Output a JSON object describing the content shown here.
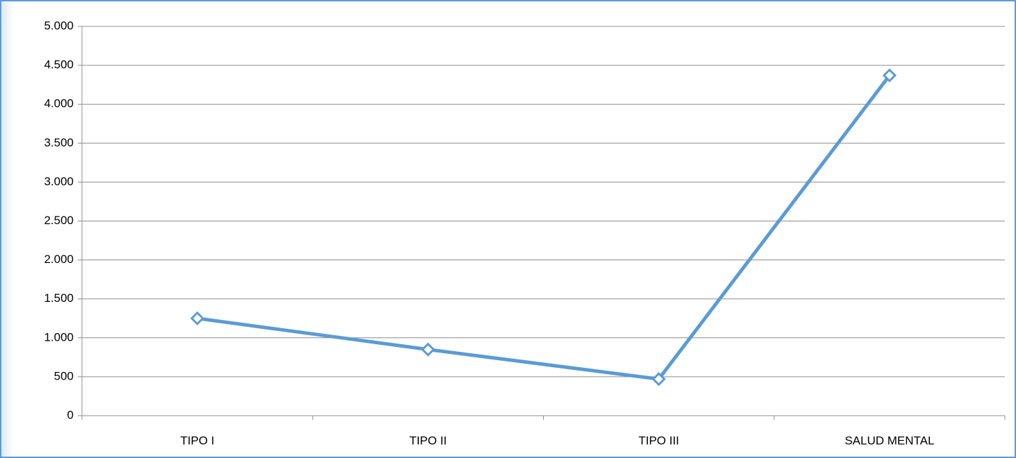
{
  "chart_data": {
    "type": "line",
    "categories": [
      "TIPO I",
      "TIPO II",
      "TIPO III",
      "SALUD MENTAL"
    ],
    "series": [
      {
        "color": "#5b9bd5",
        "values": [
          1250,
          850,
          470,
          4370
        ]
      }
    ],
    "ylim": [
      0,
      5000
    ],
    "yticks": [
      0,
      500,
      {
        "value": 1000,
        "label": "1.000"
      },
      {
        "value": 1500,
        "label": "1.500"
      },
      {
        "value": 2000,
        "label": "2.000"
      },
      {
        "value": 2500,
        "label": "2.500"
      },
      {
        "value": 3000,
        "label": "3.000"
      },
      {
        "value": 3500,
        "label": "3.500"
      },
      {
        "value": 4000,
        "label": "4.000"
      },
      {
        "value": 4500,
        "label": "4.500"
      },
      {
        "value": 5000,
        "label": "5.000"
      }
    ],
    "grid": true
  }
}
